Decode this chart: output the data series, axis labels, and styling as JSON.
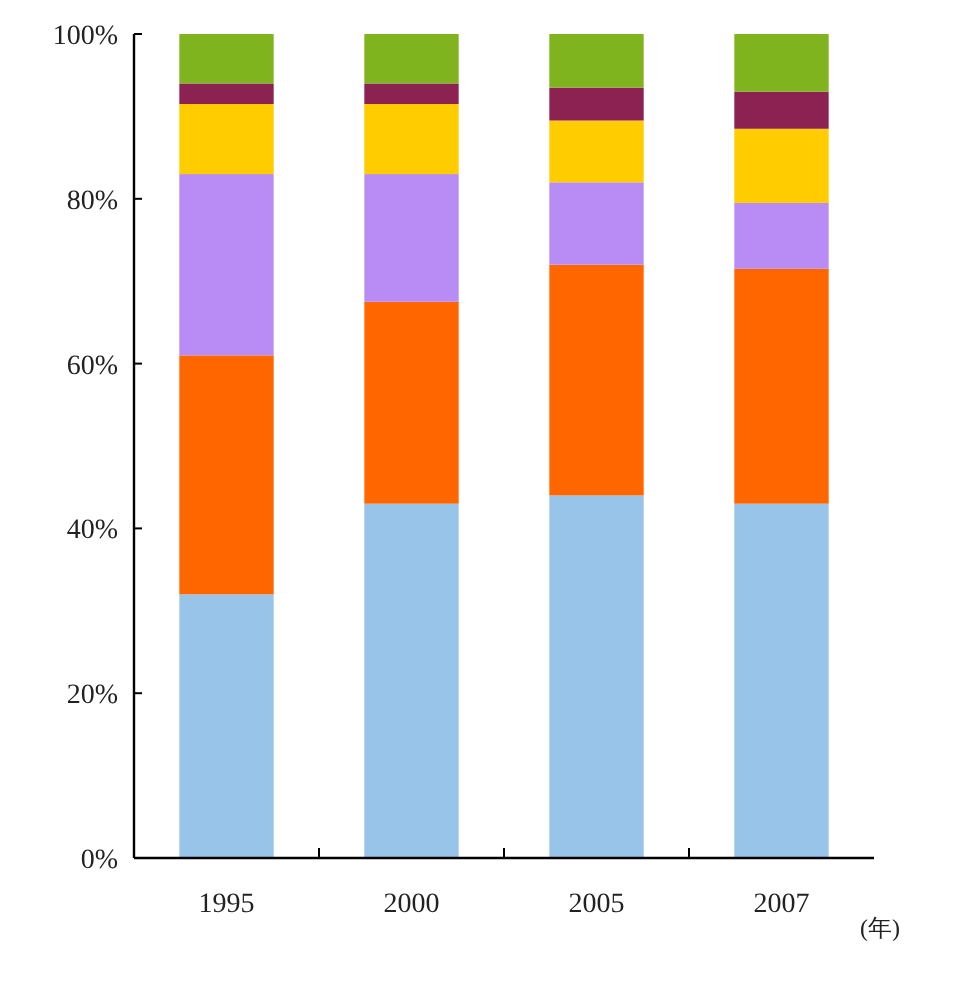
{
  "chart_data": {
    "type": "bar",
    "stacked": true,
    "xlabel": "(年)",
    "categories": [
      "1995",
      "2000",
      "2005",
      "2007"
    ],
    "series": [
      {
        "color": "#99c4ea",
        "values": [
          32,
          43,
          44,
          43
        ]
      },
      {
        "color": "#ff6600",
        "values": [
          29,
          24.5,
          28,
          28.5
        ]
      },
      {
        "color": "#b98cf5",
        "values": [
          22,
          15.5,
          10,
          8
        ]
      },
      {
        "color": "#ffcc00",
        "values": [
          8.5,
          8.5,
          7.5,
          9
        ]
      },
      {
        "color": "#8b2252",
        "values": [
          2.5,
          2.5,
          4,
          4.5
        ]
      },
      {
        "color": "#80b41e",
        "values": [
          6,
          6,
          6.5,
          7
        ]
      }
    ],
    "ylim": [
      0,
      100
    ],
    "yticks": [
      {
        "value": 0,
        "label": "0%"
      },
      {
        "value": 20,
        "label": "20%"
      },
      {
        "value": 40,
        "label": "40%"
      },
      {
        "value": 60,
        "label": "60%"
      },
      {
        "value": 80,
        "label": "80%"
      },
      {
        "value": 100,
        "label": "100%"
      }
    ],
    "grid": false
  }
}
